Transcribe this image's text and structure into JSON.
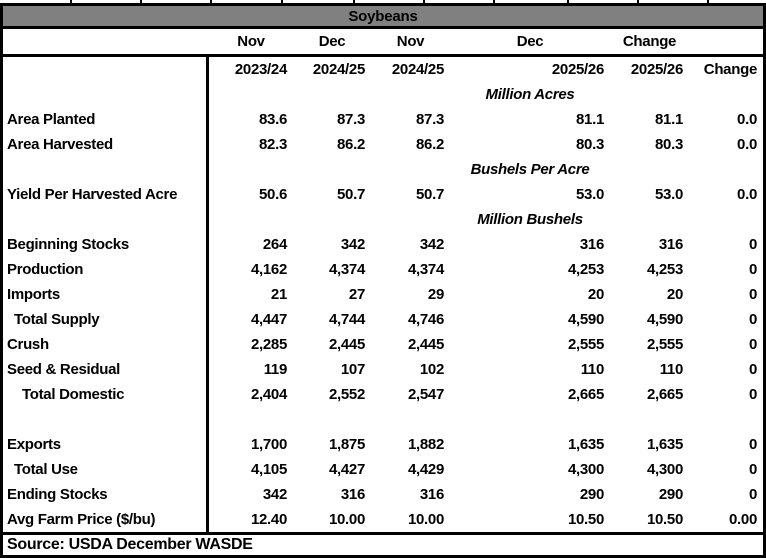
{
  "chart_data": {
    "type": "table",
    "title": "Soybeans",
    "header": {
      "months": [
        "Nov",
        "Dec",
        "Nov",
        "Dec",
        "Change"
      ],
      "years": [
        "2023/24",
        "2024/25",
        "2024/25",
        "2025/26",
        "2025/26",
        "Change"
      ]
    },
    "rows": [
      {
        "kind": "section",
        "label": "Million Acres"
      },
      {
        "kind": "data",
        "label": "Area Planted",
        "indent": 0,
        "values": [
          "83.6",
          "87.3",
          "87.3",
          "81.1",
          "81.1",
          "0.0"
        ]
      },
      {
        "kind": "data",
        "label": "Area Harvested",
        "indent": 0,
        "values": [
          "82.3",
          "86.2",
          "86.2",
          "80.3",
          "80.3",
          "0.0"
        ]
      },
      {
        "kind": "section",
        "label": "Bushels Per Acre"
      },
      {
        "kind": "data",
        "label": "Yield Per Harvested Acre",
        "indent": 0,
        "values": [
          "50.6",
          "50.7",
          "50.7",
          "53.0",
          "53.0",
          "0.0"
        ]
      },
      {
        "kind": "section",
        "label": "Million Bushels"
      },
      {
        "kind": "data",
        "label": "Beginning Stocks",
        "indent": 0,
        "values": [
          "264",
          "342",
          "342",
          "316",
          "316",
          "0"
        ]
      },
      {
        "kind": "data",
        "label": "Production",
        "indent": 0,
        "values": [
          "4,162",
          "4,374",
          "4,374",
          "4,253",
          "4,253",
          "0"
        ]
      },
      {
        "kind": "data",
        "label": "Imports",
        "indent": 0,
        "values": [
          "21",
          "27",
          "29",
          "20",
          "20",
          "0"
        ]
      },
      {
        "kind": "data",
        "label": "Total Supply",
        "indent": 1,
        "values": [
          "4,447",
          "4,744",
          "4,746",
          "4,590",
          "4,590",
          "0"
        ]
      },
      {
        "kind": "data",
        "label": "Crush",
        "indent": 0,
        "values": [
          "2,285",
          "2,445",
          "2,445",
          "2,555",
          "2,555",
          "0"
        ]
      },
      {
        "kind": "data",
        "label": "Seed & Residual",
        "indent": 0,
        "values": [
          "119",
          "107",
          "102",
          "110",
          "110",
          "0"
        ]
      },
      {
        "kind": "data",
        "label": "Total Domestic",
        "indent": 2,
        "values": [
          "2,404",
          "2,552",
          "2,547",
          "2,665",
          "2,665",
          "0"
        ]
      },
      {
        "kind": "blank"
      },
      {
        "kind": "data",
        "label": "Exports",
        "indent": 0,
        "values": [
          "1,700",
          "1,875",
          "1,882",
          "1,635",
          "1,635",
          "0"
        ]
      },
      {
        "kind": "data",
        "label": "Total Use",
        "indent": 1,
        "values": [
          "4,105",
          "4,427",
          "4,429",
          "4,300",
          "4,300",
          "0"
        ]
      },
      {
        "kind": "data",
        "label": "Ending Stocks",
        "indent": 0,
        "values": [
          "342",
          "316",
          "316",
          "290",
          "290",
          "0"
        ]
      },
      {
        "kind": "data",
        "label": "Avg Farm Price ($/bu)",
        "indent": 0,
        "values": [
          "12.40",
          "10.00",
          "10.00",
          "10.50",
          "10.50",
          "0.00"
        ]
      }
    ],
    "source": "Source: USDA December WASDE"
  },
  "colors": {
    "title_bg": "#808080",
    "border": "#000000",
    "text": "#000000",
    "background": "#ffffff"
  }
}
